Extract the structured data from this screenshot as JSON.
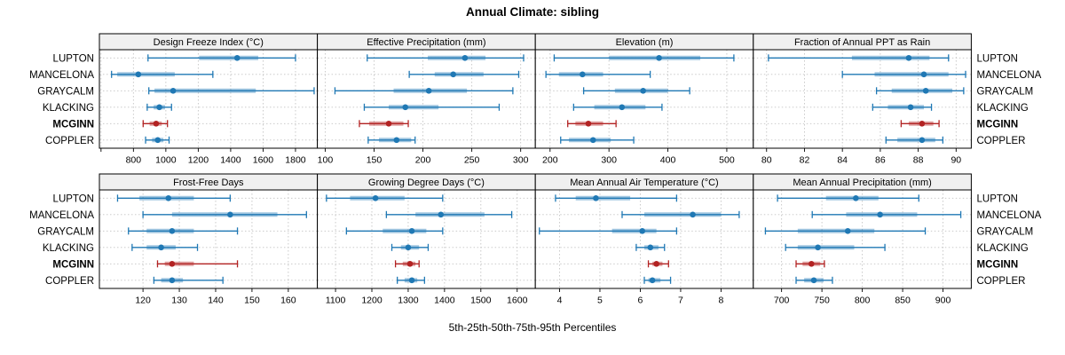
{
  "chart_data": {
    "type": "multi-panel-percentile-dotplot",
    "title": "Annual Climate: sibling",
    "xlabel": "5th-25th-50th-75th-95th Percentiles",
    "percentiles": [
      "5th",
      "25th",
      "50th",
      "75th",
      "95th"
    ],
    "sites": [
      "LUPTON",
      "MANCELONA",
      "GRAYCALM",
      "KLACKING",
      "MCGINN",
      "COPPLER"
    ],
    "highlight_site": "MCGINN",
    "legend_position": "none",
    "grid": "dotted",
    "colors": {
      "blue": "#1F78B4",
      "red": "#B22222",
      "strip_bg": "#F0F0F0",
      "grid": "#C4C4C4",
      "border": "#000000"
    },
    "panels": [
      {
        "title": "Design Freeze Index (°C)",
        "domain": [
          590,
          1935
        ],
        "ticks": [
          600,
          800,
          1000,
          1200,
          1400,
          1600,
          1800
        ],
        "tick_labels": [
          "",
          "800",
          "1000",
          "1200",
          "1400",
          "1600",
          "1800"
        ],
        "values": [
          [
            890,
            1205,
            1440,
            1570,
            1800
          ],
          [
            665,
            700,
            830,
            1055,
            1290
          ],
          [
            895,
            930,
            1045,
            1555,
            1915
          ],
          [
            885,
            925,
            960,
            995,
            1035
          ],
          [
            860,
            900,
            940,
            975,
            1010
          ],
          [
            875,
            915,
            950,
            985,
            1020
          ]
        ]
      },
      {
        "title": "Effective Precipitation (mm)",
        "domain": [
          92,
          315
        ],
        "ticks": [
          100,
          150,
          200,
          250,
          300
        ],
        "tick_labels": [
          "100",
          "150",
          "200",
          "250",
          "300"
        ],
        "values": [
          [
            143,
            205,
            243,
            264,
            303
          ],
          [
            186,
            212,
            231,
            262,
            298
          ],
          [
            110,
            170,
            206,
            245,
            292
          ],
          [
            140,
            165,
            182,
            216,
            278
          ],
          [
            135,
            145,
            165,
            180,
            185
          ],
          [
            144,
            155,
            173,
            188,
            192
          ]
        ]
      },
      {
        "title": "Elevation (m)",
        "domain": [
          175,
          545
        ],
        "ticks": [
          200,
          300,
          400,
          500
        ],
        "tick_labels": [
          "200",
          "300",
          "400",
          "500"
        ],
        "values": [
          [
            207,
            300,
            385,
            455,
            512
          ],
          [
            193,
            215,
            255,
            290,
            370
          ],
          [
            257,
            310,
            358,
            400,
            437
          ],
          [
            240,
            275,
            322,
            362,
            390
          ],
          [
            230,
            243,
            265,
            290,
            312
          ],
          [
            218,
            232,
            273,
            303,
            342
          ]
        ]
      },
      {
        "title": "Fraction of Annual PPT as Rain",
        "domain": [
          79.3,
          90.8
        ],
        "ticks": [
          80,
          82,
          84,
          86,
          88,
          90
        ],
        "tick_labels": [
          "80",
          "82",
          "84",
          "86",
          "88",
          "90"
        ],
        "values": [
          [
            80.1,
            84.5,
            87.5,
            88.6,
            89.6
          ],
          [
            84.0,
            85.7,
            88.3,
            89.6,
            90.5
          ],
          [
            85.8,
            86.6,
            88.4,
            89.8,
            90.4
          ],
          [
            85.6,
            86.4,
            87.6,
            88.3,
            88.7
          ],
          [
            87.1,
            87.5,
            88.2,
            88.8,
            89.1
          ],
          [
            86.3,
            86.9,
            88.2,
            88.9,
            89.3
          ]
        ]
      },
      {
        "title": "Frost-Free Days",
        "domain": [
          108,
          168
        ],
        "ticks": [
          120,
          130,
          140,
          150,
          160
        ],
        "tick_labels": [
          "120",
          "130",
          "140",
          "150",
          "160"
        ],
        "values": [
          [
            113,
            119,
            127,
            134,
            144
          ],
          [
            120,
            128,
            144,
            157,
            165
          ],
          [
            116,
            121,
            128,
            134,
            146
          ],
          [
            117,
            121,
            125,
            129,
            135
          ],
          [
            124,
            126,
            128,
            134,
            146
          ],
          [
            123,
            125,
            128,
            131,
            142
          ]
        ]
      },
      {
        "title": "Growing Degree Days (°C)",
        "domain": [
          1050,
          1650
        ],
        "ticks": [
          1100,
          1200,
          1300,
          1400,
          1500,
          1600
        ],
        "tick_labels": [
          "1100",
          "1200",
          "1300",
          "1400",
          "1500",
          "1600"
        ],
        "values": [
          [
            1075,
            1140,
            1210,
            1290,
            1395
          ],
          [
            1240,
            1320,
            1390,
            1510,
            1585
          ],
          [
            1130,
            1230,
            1310,
            1350,
            1395
          ],
          [
            1255,
            1280,
            1300,
            1330,
            1355
          ],
          [
            1265,
            1285,
            1305,
            1320,
            1330
          ],
          [
            1270,
            1290,
            1310,
            1325,
            1345
          ]
        ]
      },
      {
        "title": "Mean Annual Air Temperature (°C)",
        "domain": [
          3.4,
          8.8
        ],
        "ticks": [
          4,
          5,
          6,
          7,
          8
        ],
        "tick_labels": [
          "4",
          "5",
          "6",
          "7",
          "8"
        ],
        "values": [
          [
            3.9,
            4.4,
            4.9,
            5.75,
            6.9
          ],
          [
            5.55,
            6.1,
            7.3,
            8.0,
            8.45
          ],
          [
            3.5,
            5.3,
            6.05,
            6.4,
            6.9
          ],
          [
            5.9,
            6.1,
            6.25,
            6.45,
            6.6
          ],
          [
            6.2,
            6.3,
            6.4,
            6.55,
            6.7
          ],
          [
            6.1,
            6.2,
            6.3,
            6.5,
            6.75
          ]
        ]
      },
      {
        "title": "Mean Annual Precipitation (mm)",
        "domain": [
          665,
          935
        ],
        "ticks": [
          700,
          750,
          800,
          850,
          900
        ],
        "tick_labels": [
          "700",
          "750",
          "800",
          "850",
          "900"
        ],
        "values": [
          [
            695,
            755,
            792,
            820,
            870
          ],
          [
            738,
            780,
            822,
            868,
            922
          ],
          [
            680,
            720,
            782,
            815,
            878
          ],
          [
            705,
            720,
            745,
            790,
            828
          ],
          [
            718,
            726,
            737,
            748,
            753
          ],
          [
            718,
            728,
            740,
            752,
            763
          ]
        ]
      }
    ]
  }
}
